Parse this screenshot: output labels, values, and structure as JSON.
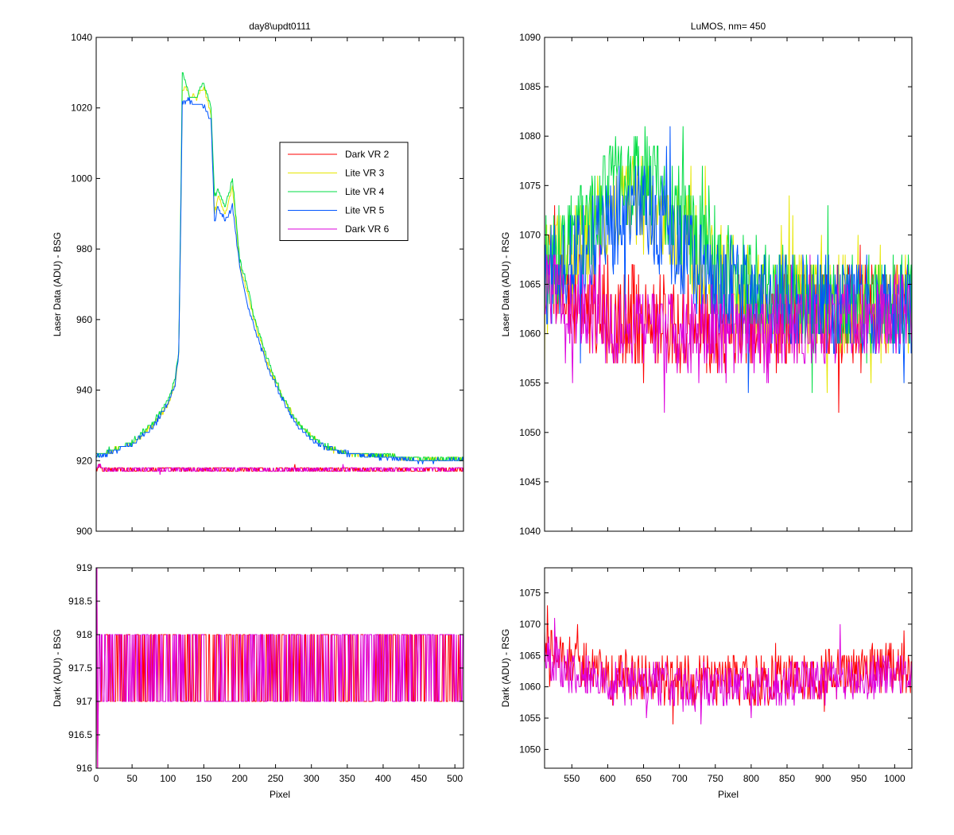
{
  "figure": {
    "background": "#ffffff"
  },
  "chart_data": [
    {
      "id": "top-left",
      "type": "line",
      "title": "day8\\updt0111",
      "xlabel": "",
      "ylabel": "Laser Data (ADU) - BSG",
      "xlim": [
        0,
        512
      ],
      "ylim": [
        900,
        1040
      ],
      "xticks": [],
      "yticks": [
        900,
        920,
        940,
        960,
        980,
        1000,
        1020,
        1040
      ],
      "xminor_ticks": [
        0,
        50,
        100,
        150,
        200,
        250,
        300,
        350,
        400,
        450,
        500
      ],
      "legend": {
        "placement": "upper-right-inside",
        "entries": [
          "Dark VR 2",
          "Lite VR 3",
          "Lite VR 4",
          "Lite VR 5",
          "Dark VR 6"
        ]
      },
      "series": [
        {
          "name": "Dark VR 2",
          "color": "#ff0000",
          "x": [
            0,
            5,
            10,
            512
          ],
          "y": [
            917.5,
            918.5,
            917.5,
            917.5
          ],
          "noise": 0.5
        },
        {
          "name": "Lite VR 3",
          "color": "#e6e600",
          "x": [
            0,
            10,
            50,
            80,
            100,
            110,
            115,
            118,
            120,
            125,
            130,
            140,
            150,
            160,
            165,
            170,
            180,
            190,
            200,
            210,
            220,
            240,
            260,
            280,
            300,
            320,
            350,
            400,
            450,
            512
          ],
          "y": [
            922,
            922,
            925,
            930,
            936,
            942,
            950,
            990,
            1025,
            1026,
            1023,
            1023,
            1026,
            1018,
            990,
            995,
            990,
            998,
            975,
            968,
            960,
            947,
            938,
            931,
            927,
            924,
            922,
            921.5,
            920.5,
            920.5
          ],
          "noise": 0.6
        },
        {
          "name": "Lite VR 4",
          "color": "#00dd44",
          "x": [
            0,
            10,
            50,
            80,
            100,
            110,
            115,
            118,
            120,
            125,
            130,
            140,
            150,
            160,
            165,
            170,
            180,
            190,
            200,
            210,
            220,
            240,
            260,
            280,
            300,
            320,
            350,
            400,
            450,
            512
          ],
          "y": [
            922,
            922,
            925,
            931,
            937,
            943,
            951,
            995,
            1030,
            1027,
            1023,
            1023,
            1027,
            1020,
            995,
            997,
            992,
            1000,
            977,
            970,
            961,
            948,
            938,
            931,
            927,
            924,
            922,
            921.5,
            920.5,
            920.5
          ],
          "noise": 0.6
        },
        {
          "name": "Lite VR 5",
          "color": "#0055ff",
          "x": [
            0,
            10,
            50,
            80,
            100,
            110,
            115,
            118,
            120,
            125,
            130,
            140,
            150,
            160,
            165,
            170,
            180,
            190,
            200,
            210,
            220,
            240,
            260,
            280,
            300,
            320,
            350,
            400,
            450,
            512
          ],
          "y": [
            921.5,
            921.5,
            924.5,
            930,
            936,
            942,
            950,
            990,
            1022,
            1022,
            1022,
            1021,
            1021,
            1016,
            988,
            992,
            988,
            992,
            975,
            965,
            958,
            946,
            937,
            930,
            926,
            923.5,
            922,
            921,
            920,
            920
          ],
          "noise": 0.6
        },
        {
          "name": "Dark VR 6",
          "color": "#dd00dd",
          "x": [
            0,
            5,
            10,
            512
          ],
          "y": [
            917.5,
            918.5,
            917.5,
            917.5
          ],
          "noise": 0.5
        }
      ]
    },
    {
      "id": "top-right",
      "type": "line",
      "title": "LuMOS, nm= 450",
      "xlabel": "",
      "ylabel": "Laser Data (ADU) - RSG",
      "xlim": [
        512,
        1024
      ],
      "ylim": [
        1040,
        1090
      ],
      "xticks": [],
      "yticks": [
        1040,
        1045,
        1050,
        1055,
        1060,
        1065,
        1070,
        1075,
        1080,
        1085,
        1090
      ],
      "xminor_ticks": [
        550,
        600,
        650,
        700,
        750,
        800,
        850,
        900,
        950,
        1000
      ],
      "series": [
        {
          "name": "Dark VR 2",
          "color": "#ff0000",
          "x": [
            512,
            540,
            600,
            700,
            800,
            900,
            1000,
            1024
          ],
          "y": [
            1066,
            1064,
            1062,
            1061,
            1061,
            1062,
            1063,
            1063
          ],
          "noise": 5
        },
        {
          "name": "Lite VR 3",
          "color": "#e6e600",
          "x": [
            512,
            550,
            600,
            650,
            700,
            750,
            800,
            900,
            1000,
            1024
          ],
          "y": [
            1067,
            1068,
            1072,
            1074,
            1070,
            1066,
            1064,
            1063,
            1063,
            1063
          ],
          "noise": 5
        },
        {
          "name": "Lite VR 4",
          "color": "#00dd44",
          "x": [
            512,
            550,
            600,
            650,
            700,
            750,
            800,
            900,
            1000,
            1024
          ],
          "y": [
            1067,
            1069,
            1074,
            1076,
            1072,
            1067,
            1065,
            1063,
            1063,
            1063
          ],
          "noise": 5
        },
        {
          "name": "Lite VR 5",
          "color": "#0055ff",
          "x": [
            512,
            550,
            600,
            650,
            700,
            750,
            800,
            900,
            1000,
            1024
          ],
          "y": [
            1066,
            1067,
            1071,
            1073,
            1069,
            1065,
            1064,
            1063,
            1063,
            1063
          ],
          "noise": 5
        },
        {
          "name": "Dark VR 6",
          "color": "#dd00dd",
          "x": [
            512,
            540,
            600,
            700,
            800,
            900,
            1000,
            1024
          ],
          "y": [
            1065,
            1063,
            1061,
            1060,
            1060,
            1061,
            1062,
            1062
          ],
          "noise": 4
        }
      ]
    },
    {
      "id": "bottom-left",
      "type": "line",
      "title": "",
      "xlabel": "Pixel",
      "ylabel": "Dark (ADU) - BSG",
      "xlim": [
        0,
        512
      ],
      "ylim": [
        916,
        919
      ],
      "xticks": [
        0,
        50,
        100,
        150,
        200,
        250,
        300,
        350,
        400,
        450,
        500
      ],
      "yticks": [
        916,
        916.5,
        917,
        917.5,
        918,
        918.5,
        919
      ],
      "series": [
        {
          "name": "Dark VR 2",
          "color": "#ff0000",
          "x": [
            0,
            512
          ],
          "y": [
            917.5,
            917.5
          ],
          "levels": [
            917,
            918
          ],
          "spike": [
            916,
            919
          ]
        },
        {
          "name": "Dark VR 6",
          "color": "#dd00dd",
          "x": [
            0,
            512
          ],
          "y": [
            917.5,
            917.5
          ],
          "levels": [
            917,
            918
          ],
          "spike": [
            916,
            919
          ]
        }
      ]
    },
    {
      "id": "bottom-right",
      "type": "line",
      "title": "",
      "xlabel": "Pixel",
      "ylabel": "Dark (ADU) - RSG",
      "xlim": [
        512,
        1024
      ],
      "ylim": [
        1047,
        1079
      ],
      "xticks": [
        550,
        600,
        650,
        700,
        750,
        800,
        850,
        900,
        950,
        1000
      ],
      "yticks": [
        1050,
        1055,
        1060,
        1065,
        1070,
        1075
      ],
      "series": [
        {
          "name": "Dark VR 2",
          "color": "#ff0000",
          "x": [
            512,
            540,
            600,
            700,
            800,
            900,
            1000,
            1024
          ],
          "y": [
            1067,
            1065,
            1062,
            1061,
            1061,
            1062,
            1063,
            1063
          ],
          "noise": 4
        },
        {
          "name": "Dark VR 6",
          "color": "#dd00dd",
          "x": [
            512,
            540,
            600,
            700,
            800,
            900,
            1000,
            1024
          ],
          "y": [
            1065,
            1063,
            1061,
            1060,
            1060,
            1061,
            1062,
            1062
          ],
          "noise": 3.5
        }
      ]
    }
  ]
}
